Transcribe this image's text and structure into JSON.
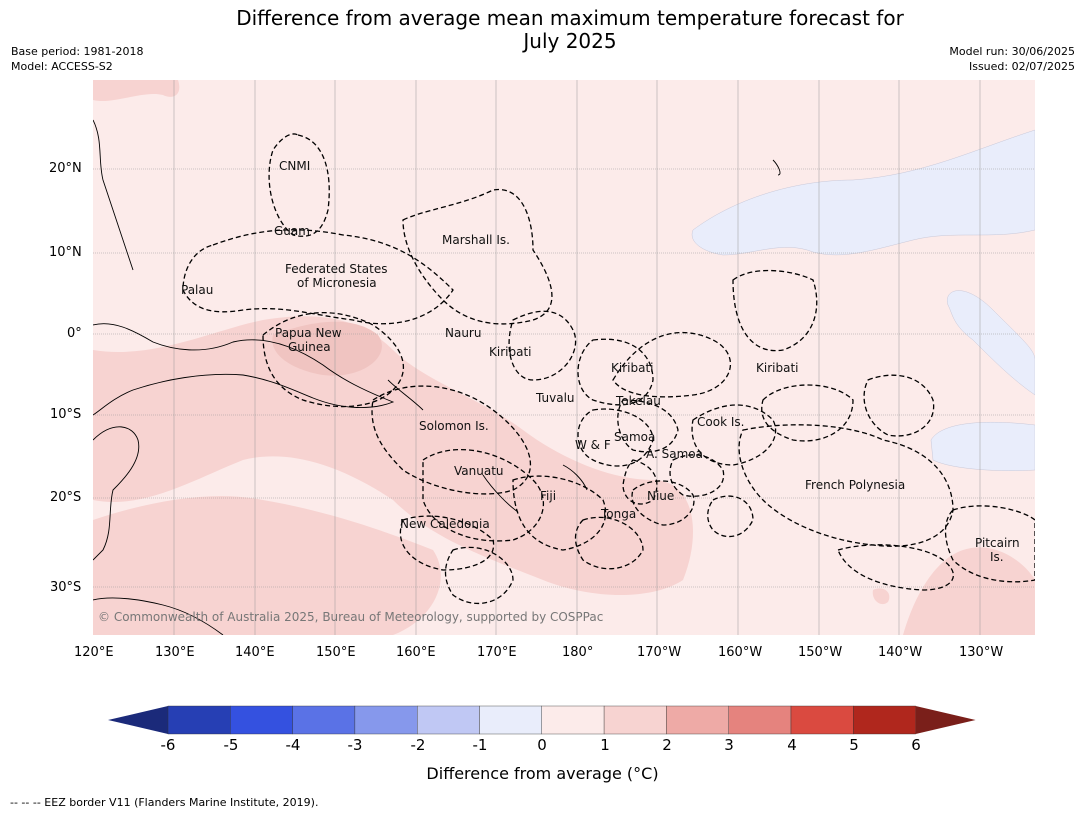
{
  "title_line1": "Difference from average mean maximum temperature forecast for",
  "title_line2": "July 2025",
  "meta_left": {
    "base_period": "Base period: 1981-2018",
    "model": "Model: ACCESS-S2"
  },
  "meta_right": {
    "model_run": "Model run: 30/06/2025",
    "issued": "Issued: 02/07/2025"
  },
  "lat_labels": [
    "20°N",
    "10°N",
    "0°",
    "10°S",
    "20°S",
    "30°S"
  ],
  "lon_labels": [
    "120°E",
    "130°E",
    "140°E",
    "150°E",
    "160°E",
    "170°E",
    "180°",
    "170°W",
    "160°W",
    "150°W",
    "140°W",
    "130°W"
  ],
  "places": {
    "cnmi": "CNMI",
    "guam": "Guam",
    "marshall": "Marshall Is.",
    "fsm1": "Federated States",
    "fsm2": "of Micronesia",
    "palau": "Palau",
    "png1": "Papua New",
    "png2": "Guinea",
    "nauru": "Nauru",
    "kiribati_w": "Kiribati",
    "kiribati_c": "Kiribati",
    "kiribati_e": "Kiribati",
    "tuvalu": "Tuvalu",
    "tokelau": "Tokelau",
    "cook": "Cook Is.",
    "solomon": "Solomon Is.",
    "wf": "W & F",
    "samoa": "Samoa",
    "asamoa": "A. Samoa",
    "vanuatu": "Vanuatu",
    "fiji": "Fiji",
    "niue": "Niue",
    "tonga": "Tonga",
    "frpoly": "French Polynesia",
    "newcal": "New Caledonia",
    "pitcairn1": "Pitcairn",
    "pitcairn2": "Is."
  },
  "copyright": "© Commonwealth of Australia 2025, Bureau of Meteorology, supported by COSPPac",
  "colorbar": {
    "ticks": [
      "-6",
      "-5",
      "-4",
      "-3",
      "-2",
      "-1",
      "0",
      "1",
      "2",
      "3",
      "4",
      "5",
      "6"
    ],
    "colors": [
      "#263fb4",
      "#3451e0",
      "#5a72e6",
      "#8698ec",
      "#c0c8f4",
      "#e9edfb",
      "#fcebea",
      "#f7d3d1",
      "#eeaaa6",
      "#e5837e",
      "#da4a40",
      "#b0271d"
    ],
    "under_color": "#1b2a7a",
    "over_color": "#7a1f1a",
    "label": "Difference from average (°C)"
  },
  "footer": "-- -- -- EEZ border V11 (Flanders Marine Institute, 2019)."
}
